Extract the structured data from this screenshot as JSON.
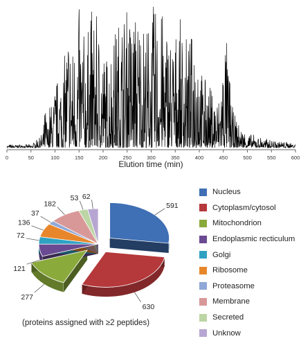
{
  "chart_data": [
    {
      "type": "line",
      "xlabel": "Elution time (min)",
      "xlim": [
        0,
        600
      ],
      "xticks": [
        0,
        50,
        100,
        150,
        200,
        250,
        300,
        350,
        400,
        450,
        500,
        550,
        600
      ],
      "axis": {
        "color": "#666666"
      },
      "series": [
        {
          "color": "#000000",
          "x": [
            0,
            50,
            60,
            70,
            75,
            80,
            85,
            90,
            95,
            100,
            110,
            120,
            128,
            135,
            150,
            165,
            175,
            190,
            205,
            220,
            235,
            250,
            262,
            275,
            290,
            300,
            315,
            330,
            345,
            360,
            380,
            395,
            405,
            420,
            440,
            455,
            470,
            485,
            500,
            520,
            540,
            560,
            580,
            600
          ],
          "values": [
            0.02,
            0.02,
            0.05,
            0.08,
            0.12,
            0.3,
            0.15,
            0.35,
            0.28,
            0.45,
            0.55,
            0.65,
            0.95,
            0.7,
            0.98,
            0.75,
            1.0,
            0.9,
            0.65,
            0.8,
            0.95,
            1.0,
            0.98,
            1.0,
            0.85,
            1.0,
            0.98,
            0.95,
            0.8,
            0.9,
            0.75,
            1.0,
            0.55,
            0.45,
            0.35,
            0.85,
            0.25,
            0.15,
            0.1,
            0.08,
            0.06,
            0.05,
            0.04,
            0.03
          ]
        }
      ]
    },
    {
      "type": "pie",
      "note": "(proteins assigned with ≥2 peptides)",
      "categories": [
        "Nucleus",
        "Cytoplasm/cytosol",
        "Mitochondrion",
        "Endoplasmic recticulum",
        "Golgi",
        "Ribosome",
        "Proteasome",
        "Membrane",
        "Secreted",
        "Unknow"
      ],
      "values": [
        591,
        630,
        277,
        121,
        72,
        136,
        37,
        182,
        53,
        62
      ],
      "labels": [
        "591",
        "630",
        "277",
        "121",
        "72",
        "136",
        "37",
        "182",
        "53",
        "62"
      ],
      "colors": [
        "#3f6fb4",
        "#b5383a",
        "#8aaa3c",
        "#6a4a92",
        "#2fa2c2",
        "#e8862c",
        "#8fa8d8",
        "#d99898",
        "#bcd5a4",
        "#b7a6d2"
      ],
      "exploded": [
        "Nucleus",
        "Cytoplasm/cytosol",
        "Mitochondrion"
      ],
      "legend_position": "right"
    }
  ]
}
